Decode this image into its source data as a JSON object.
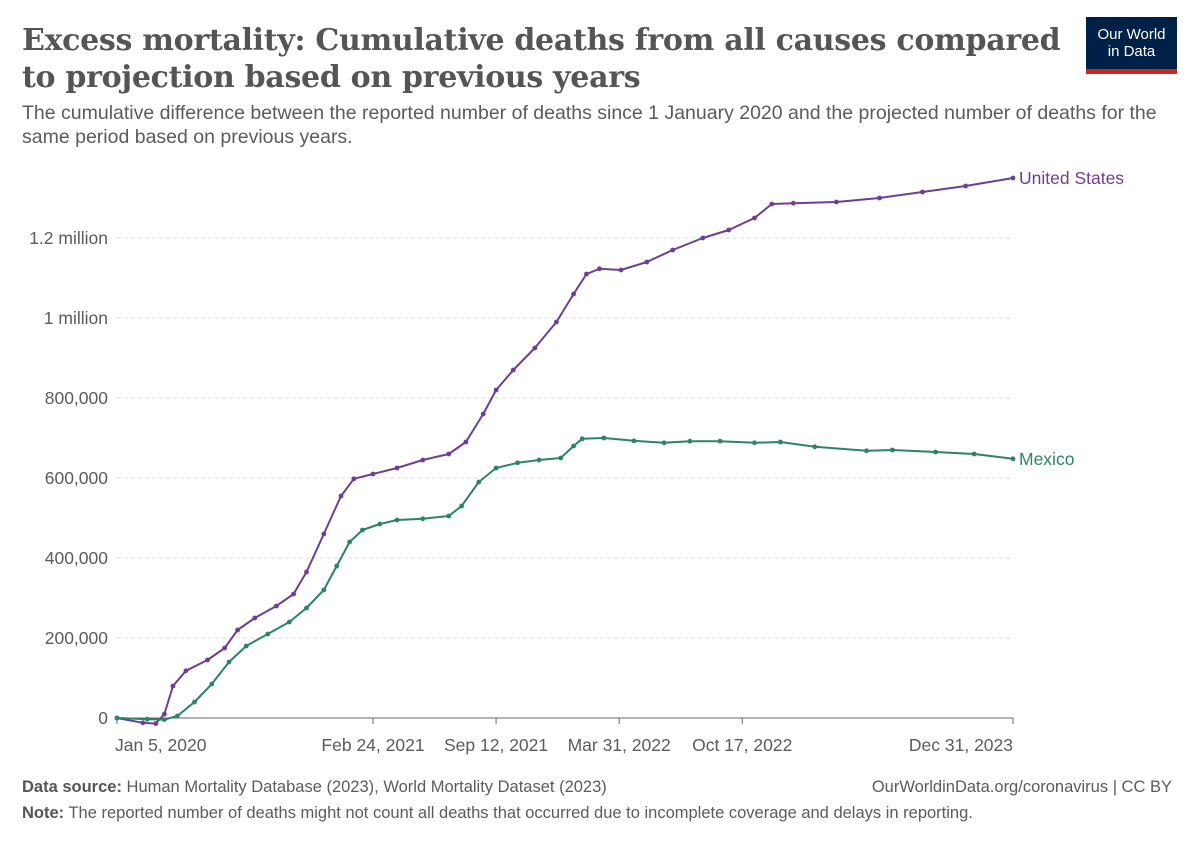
{
  "title": "Excess mortality: Cumulative deaths from all causes compared to projection based on previous years",
  "subtitle": "The cumulative difference between the reported number of deaths since 1 January 2020 and the projected number of deaths for the same period based on previous years.",
  "logo": {
    "line1": "Our World",
    "line2": "in Data"
  },
  "footer": {
    "source_label": "Data source:",
    "source_text": "Human Mortality Database (2023), World Mortality Dataset (2023)",
    "credit": "OurWorldinData.org/coronavirus | CC BY",
    "note_label": "Note:",
    "note_text": "The reported number of deaths might not count all deaths that occurred due to incomplete coverage and delays in reporting."
  },
  "colors": {
    "united_states": "#6d3e91",
    "mexico": "#2c8465",
    "grid": "#dddddd",
    "axis": "#666666",
    "text": "#5b5b5b",
    "logo_bg": "#002147",
    "logo_accent": "#ce261e"
  },
  "chart_data": {
    "type": "line",
    "title": "Excess mortality: Cumulative deaths from all causes compared to projection based on previous years",
    "xlabel": "",
    "ylabel": "",
    "x_range": [
      "2020-01-05",
      "2023-12-31"
    ],
    "ylim": [
      0,
      1350000
    ],
    "grid": true,
    "y_ticks": [
      {
        "value": 0,
        "label": "0"
      },
      {
        "value": 200000,
        "label": "200,000"
      },
      {
        "value": 400000,
        "label": "400,000"
      },
      {
        "value": 600000,
        "label": "600,000"
      },
      {
        "value": 800000,
        "label": "800,000"
      },
      {
        "value": 1000000,
        "label": "1 million"
      },
      {
        "value": 1200000,
        "label": "1.2 million"
      }
    ],
    "x_ticks": [
      {
        "date": "2020-01-05",
        "label": "Jan 5, 2020"
      },
      {
        "date": "2021-02-24",
        "label": "Feb 24, 2021"
      },
      {
        "date": "2021-09-12",
        "label": "Sep 12, 2021"
      },
      {
        "date": "2022-03-31",
        "label": "Mar 31, 2022"
      },
      {
        "date": "2022-10-17",
        "label": "Oct 17, 2022"
      },
      {
        "date": "2023-12-31",
        "label": "Dec 31, 2023"
      }
    ],
    "series": [
      {
        "name": "United States",
        "color": "#6d3e91",
        "points": [
          [
            "2020-01-05",
            0
          ],
          [
            "2020-02-16",
            -12000
          ],
          [
            "2020-03-08",
            -14000
          ],
          [
            "2020-03-22",
            10000
          ],
          [
            "2020-04-05",
            80000
          ],
          [
            "2020-04-26",
            118000
          ],
          [
            "2020-05-31",
            145000
          ],
          [
            "2020-06-28",
            175000
          ],
          [
            "2020-07-19",
            220000
          ],
          [
            "2020-08-16",
            250000
          ],
          [
            "2020-09-20",
            280000
          ],
          [
            "2020-10-18",
            310000
          ],
          [
            "2020-11-08",
            365000
          ],
          [
            "2020-12-06",
            460000
          ],
          [
            "2021-01-03",
            555000
          ],
          [
            "2021-01-24",
            598000
          ],
          [
            "2021-02-24",
            610000
          ],
          [
            "2021-04-04",
            625000
          ],
          [
            "2021-05-16",
            645000
          ],
          [
            "2021-06-27",
            660000
          ],
          [
            "2021-07-25",
            690000
          ],
          [
            "2021-08-22",
            760000
          ],
          [
            "2021-09-12",
            820000
          ],
          [
            "2021-10-10",
            870000
          ],
          [
            "2021-11-14",
            925000
          ],
          [
            "2021-12-19",
            990000
          ],
          [
            "2022-01-16",
            1060000
          ],
          [
            "2022-02-06",
            1110000
          ],
          [
            "2022-02-27",
            1123000
          ],
          [
            "2022-04-03",
            1120000
          ],
          [
            "2022-05-15",
            1140000
          ],
          [
            "2022-06-26",
            1170000
          ],
          [
            "2022-08-14",
            1200000
          ],
          [
            "2022-09-25",
            1220000
          ],
          [
            "2022-11-06",
            1250000
          ],
          [
            "2022-12-04",
            1285000
          ],
          [
            "2023-01-08",
            1287000
          ],
          [
            "2023-03-19",
            1290000
          ],
          [
            "2023-05-28",
            1300000
          ],
          [
            "2023-08-06",
            1315000
          ],
          [
            "2023-10-15",
            1330000
          ],
          [
            "2023-12-31",
            1350000
          ]
        ]
      },
      {
        "name": "Mexico",
        "color": "#2c8465",
        "points": [
          [
            "2020-01-05",
            0
          ],
          [
            "2020-02-23",
            -3000
          ],
          [
            "2020-03-22",
            -4000
          ],
          [
            "2020-04-12",
            5000
          ],
          [
            "2020-05-10",
            40000
          ],
          [
            "2020-06-07",
            85000
          ],
          [
            "2020-07-05",
            140000
          ],
          [
            "2020-08-02",
            180000
          ],
          [
            "2020-09-06",
            210000
          ],
          [
            "2020-10-11",
            240000
          ],
          [
            "2020-11-08",
            275000
          ],
          [
            "2020-12-06",
            320000
          ],
          [
            "2020-12-27",
            380000
          ],
          [
            "2021-01-17",
            440000
          ],
          [
            "2021-02-07",
            470000
          ],
          [
            "2021-03-07",
            485000
          ],
          [
            "2021-04-04",
            495000
          ],
          [
            "2021-05-16",
            498000
          ],
          [
            "2021-06-27",
            505000
          ],
          [
            "2021-07-18",
            530000
          ],
          [
            "2021-08-15",
            590000
          ],
          [
            "2021-09-12",
            625000
          ],
          [
            "2021-10-17",
            638000
          ],
          [
            "2021-11-21",
            645000
          ],
          [
            "2021-12-26",
            650000
          ],
          [
            "2022-01-16",
            680000
          ],
          [
            "2022-01-30",
            698000
          ],
          [
            "2022-03-06",
            700000
          ],
          [
            "2022-04-24",
            693000
          ],
          [
            "2022-06-12",
            688000
          ],
          [
            "2022-07-24",
            692000
          ],
          [
            "2022-09-11",
            692000
          ],
          [
            "2022-11-06",
            688000
          ],
          [
            "2022-12-18",
            690000
          ],
          [
            "2023-02-12",
            678000
          ],
          [
            "2023-05-07",
            668000
          ],
          [
            "2023-06-18",
            670000
          ],
          [
            "2023-08-27",
            665000
          ],
          [
            "2023-10-29",
            660000
          ],
          [
            "2023-12-31",
            648000
          ]
        ]
      }
    ]
  }
}
